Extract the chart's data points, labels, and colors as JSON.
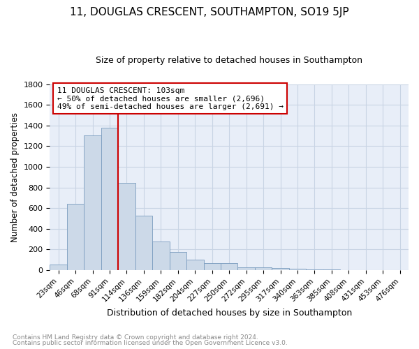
{
  "title": "11, DOUGLAS CRESCENT, SOUTHAMPTON, SO19 5JP",
  "subtitle": "Size of property relative to detached houses in Southampton",
  "xlabel": "Distribution of detached houses by size in Southampton",
  "ylabel": "Number of detached properties",
  "bar_color": "#ccd9e8",
  "bar_edge_color": "#7a9cbf",
  "categories": [
    "23sqm",
    "46sqm",
    "68sqm",
    "91sqm",
    "114sqm",
    "136sqm",
    "159sqm",
    "182sqm",
    "204sqm",
    "227sqm",
    "250sqm",
    "272sqm",
    "295sqm",
    "317sqm",
    "340sqm",
    "363sqm",
    "385sqm",
    "408sqm",
    "431sqm",
    "453sqm",
    "476sqm"
  ],
  "values": [
    55,
    640,
    1305,
    1380,
    845,
    525,
    280,
    178,
    102,
    65,
    65,
    30,
    25,
    20,
    14,
    8,
    10,
    2,
    2,
    1,
    1
  ],
  "ylim": [
    0,
    1800
  ],
  "yticks": [
    0,
    200,
    400,
    600,
    800,
    1000,
    1200,
    1400,
    1600,
    1800
  ],
  "vline_x": 4.0,
  "vline_color": "#cc0000",
  "annotation_title": "11 DOUGLAS CRESCENT: 103sqm",
  "annotation_line1": "← 50% of detached houses are smaller (2,696)",
  "annotation_line2": "49% of semi-detached houses are larger (2,691) →",
  "annotation_box_color": "#cc0000",
  "grid_color": "#c8d4e4",
  "background_color": "#e8eef8",
  "footnote1": "Contains HM Land Registry data © Crown copyright and database right 2024.",
  "footnote2": "Contains public sector information licensed under the Open Government Licence v3.0."
}
